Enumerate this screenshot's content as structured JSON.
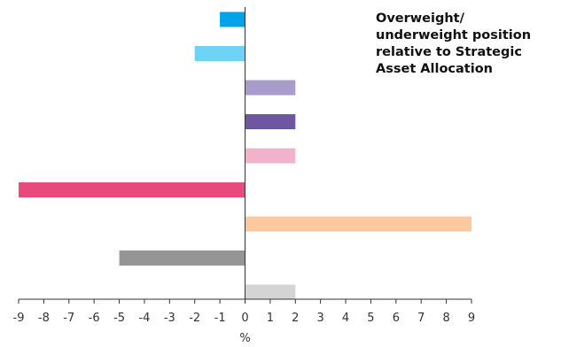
{
  "chart_data": {
    "type": "bar",
    "orientation": "horizontal",
    "title_lines": [
      "Overweight/",
      "underweight position",
      "relative to Strategic",
      "Asset Allocation"
    ],
    "xlabel": "%",
    "xlim": [
      -9,
      9
    ],
    "xticks": [
      "-9",
      "-8",
      "-7",
      "-6",
      "-5",
      "-4",
      "-3",
      "-2",
      "-1",
      "0",
      "1",
      "2",
      "3",
      "4",
      "5",
      "6",
      "7",
      "8",
      "9"
    ],
    "grid": false,
    "bars": [
      {
        "value": -1,
        "color": "#00a3e8"
      },
      {
        "value": -2,
        "color": "#6fd3f7"
      },
      {
        "value": 2,
        "color": "#a99ccc"
      },
      {
        "value": 2,
        "color": "#6e57a0"
      },
      {
        "value": 2,
        "color": "#f1b3ca"
      },
      {
        "value": -9,
        "color": "#e94a7e"
      },
      {
        "value": 9,
        "color": "#fbc9a0"
      },
      {
        "value": -5,
        "color": "#959595"
      },
      {
        "value": 2,
        "color": "#d4d4d4"
      }
    ]
  }
}
